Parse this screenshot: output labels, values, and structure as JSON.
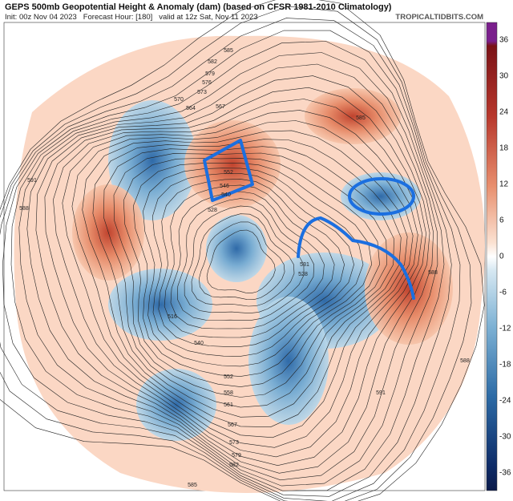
{
  "header": {
    "title": "GEPS 500mb Geopotential Height & Anomaly (dam) (based on CFSR 1981-2010 Climatology)",
    "subtitle": "Init: 00z Nov 04 2023   Forecast Hour: [180]   valid at 12z Sat, Nov 11 2023",
    "site": "TROPICALTIDBITS.COM"
  },
  "colorbar": {
    "ticks": [
      36,
      30,
      24,
      18,
      12,
      6,
      0,
      -6,
      -12,
      -18,
      -24,
      -30,
      -36
    ]
  },
  "contour_labels": [
    "585",
    "582",
    "579",
    "576",
    "573",
    "570",
    "564",
    "567",
    "552",
    "546",
    "540",
    "528",
    "531",
    "528",
    "516",
    "540",
    "552",
    "558",
    "561",
    "567",
    "573",
    "579",
    "582",
    "585",
    "588",
    "591",
    "588",
    "585",
    "591",
    "588"
  ]
}
